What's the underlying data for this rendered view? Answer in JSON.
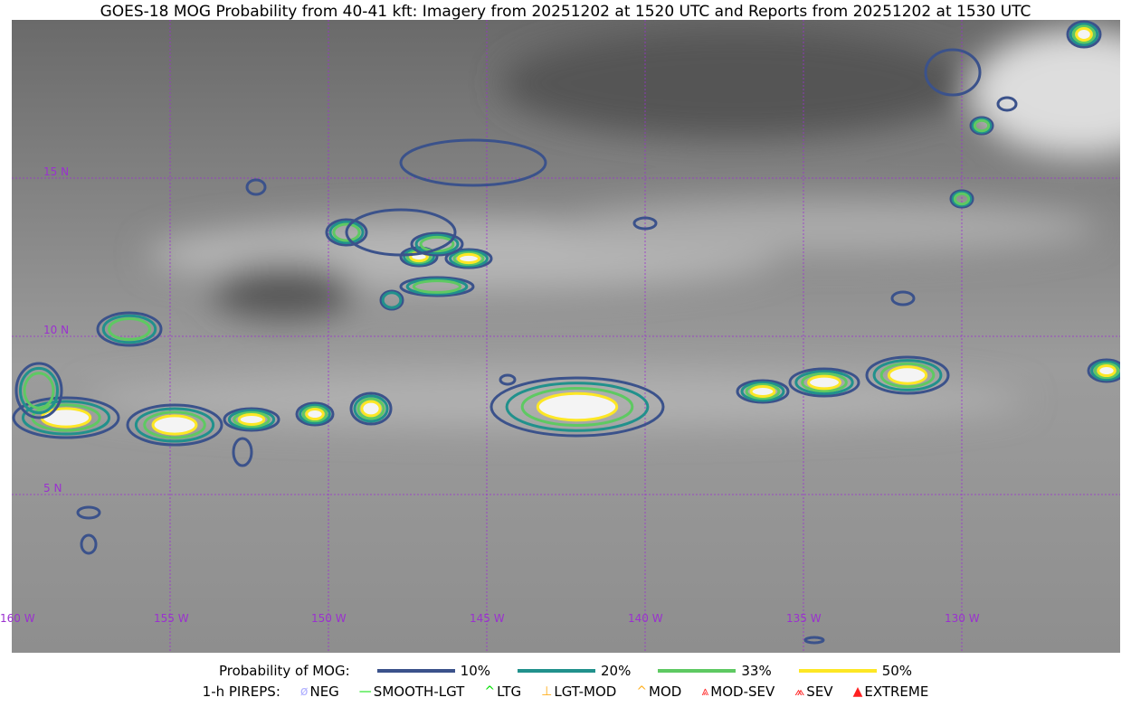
{
  "title": "GOES-18 MOG Probability from 40-41 kft: Imagery from 20251202 at 1520 UTC and Reports from 20251202 at 1530 UTC",
  "map": {
    "lat_labels": [
      "15 N",
      "10 N",
      "5 N"
    ],
    "lon_labels": [
      "160 W",
      "155 W",
      "150 W",
      "145 W",
      "140 W",
      "135 W",
      "130 W"
    ],
    "grid_color": "#9b30d0"
  },
  "legend": {
    "prob_label": "Probability of MOG:",
    "levels": [
      {
        "label": "10%",
        "color": "#3b528b"
      },
      {
        "label": "20%",
        "color": "#21918c"
      },
      {
        "label": "33%",
        "color": "#5ec962"
      },
      {
        "label": "50%",
        "color": "#fde725"
      }
    ],
    "pirep_label": "1-h PIREPS:",
    "pireps": [
      {
        "label": "NEG",
        "icon": "neg-icon",
        "color": "#b0b0ff"
      },
      {
        "label": "SMOOTH-LGT",
        "icon": "line-icon",
        "color": "#00e000"
      },
      {
        "label": "LTG",
        "icon": "caret-icon",
        "color": "#00e000"
      },
      {
        "label": "LGT-MOD",
        "icon": "caret-bar-icon",
        "color": "#ffb020"
      },
      {
        "label": "MOD",
        "icon": "caret-icon",
        "color": "#ffb020"
      },
      {
        "label": "MOD-SEV",
        "icon": "double-caret-bar-icon",
        "color": "#ff3030"
      },
      {
        "label": "SEV",
        "icon": "double-caret-icon",
        "color": "#ff3030"
      },
      {
        "label": "EXTREME",
        "icon": "filled-triangle-icon",
        "color": "#ff2020"
      }
    ]
  }
}
